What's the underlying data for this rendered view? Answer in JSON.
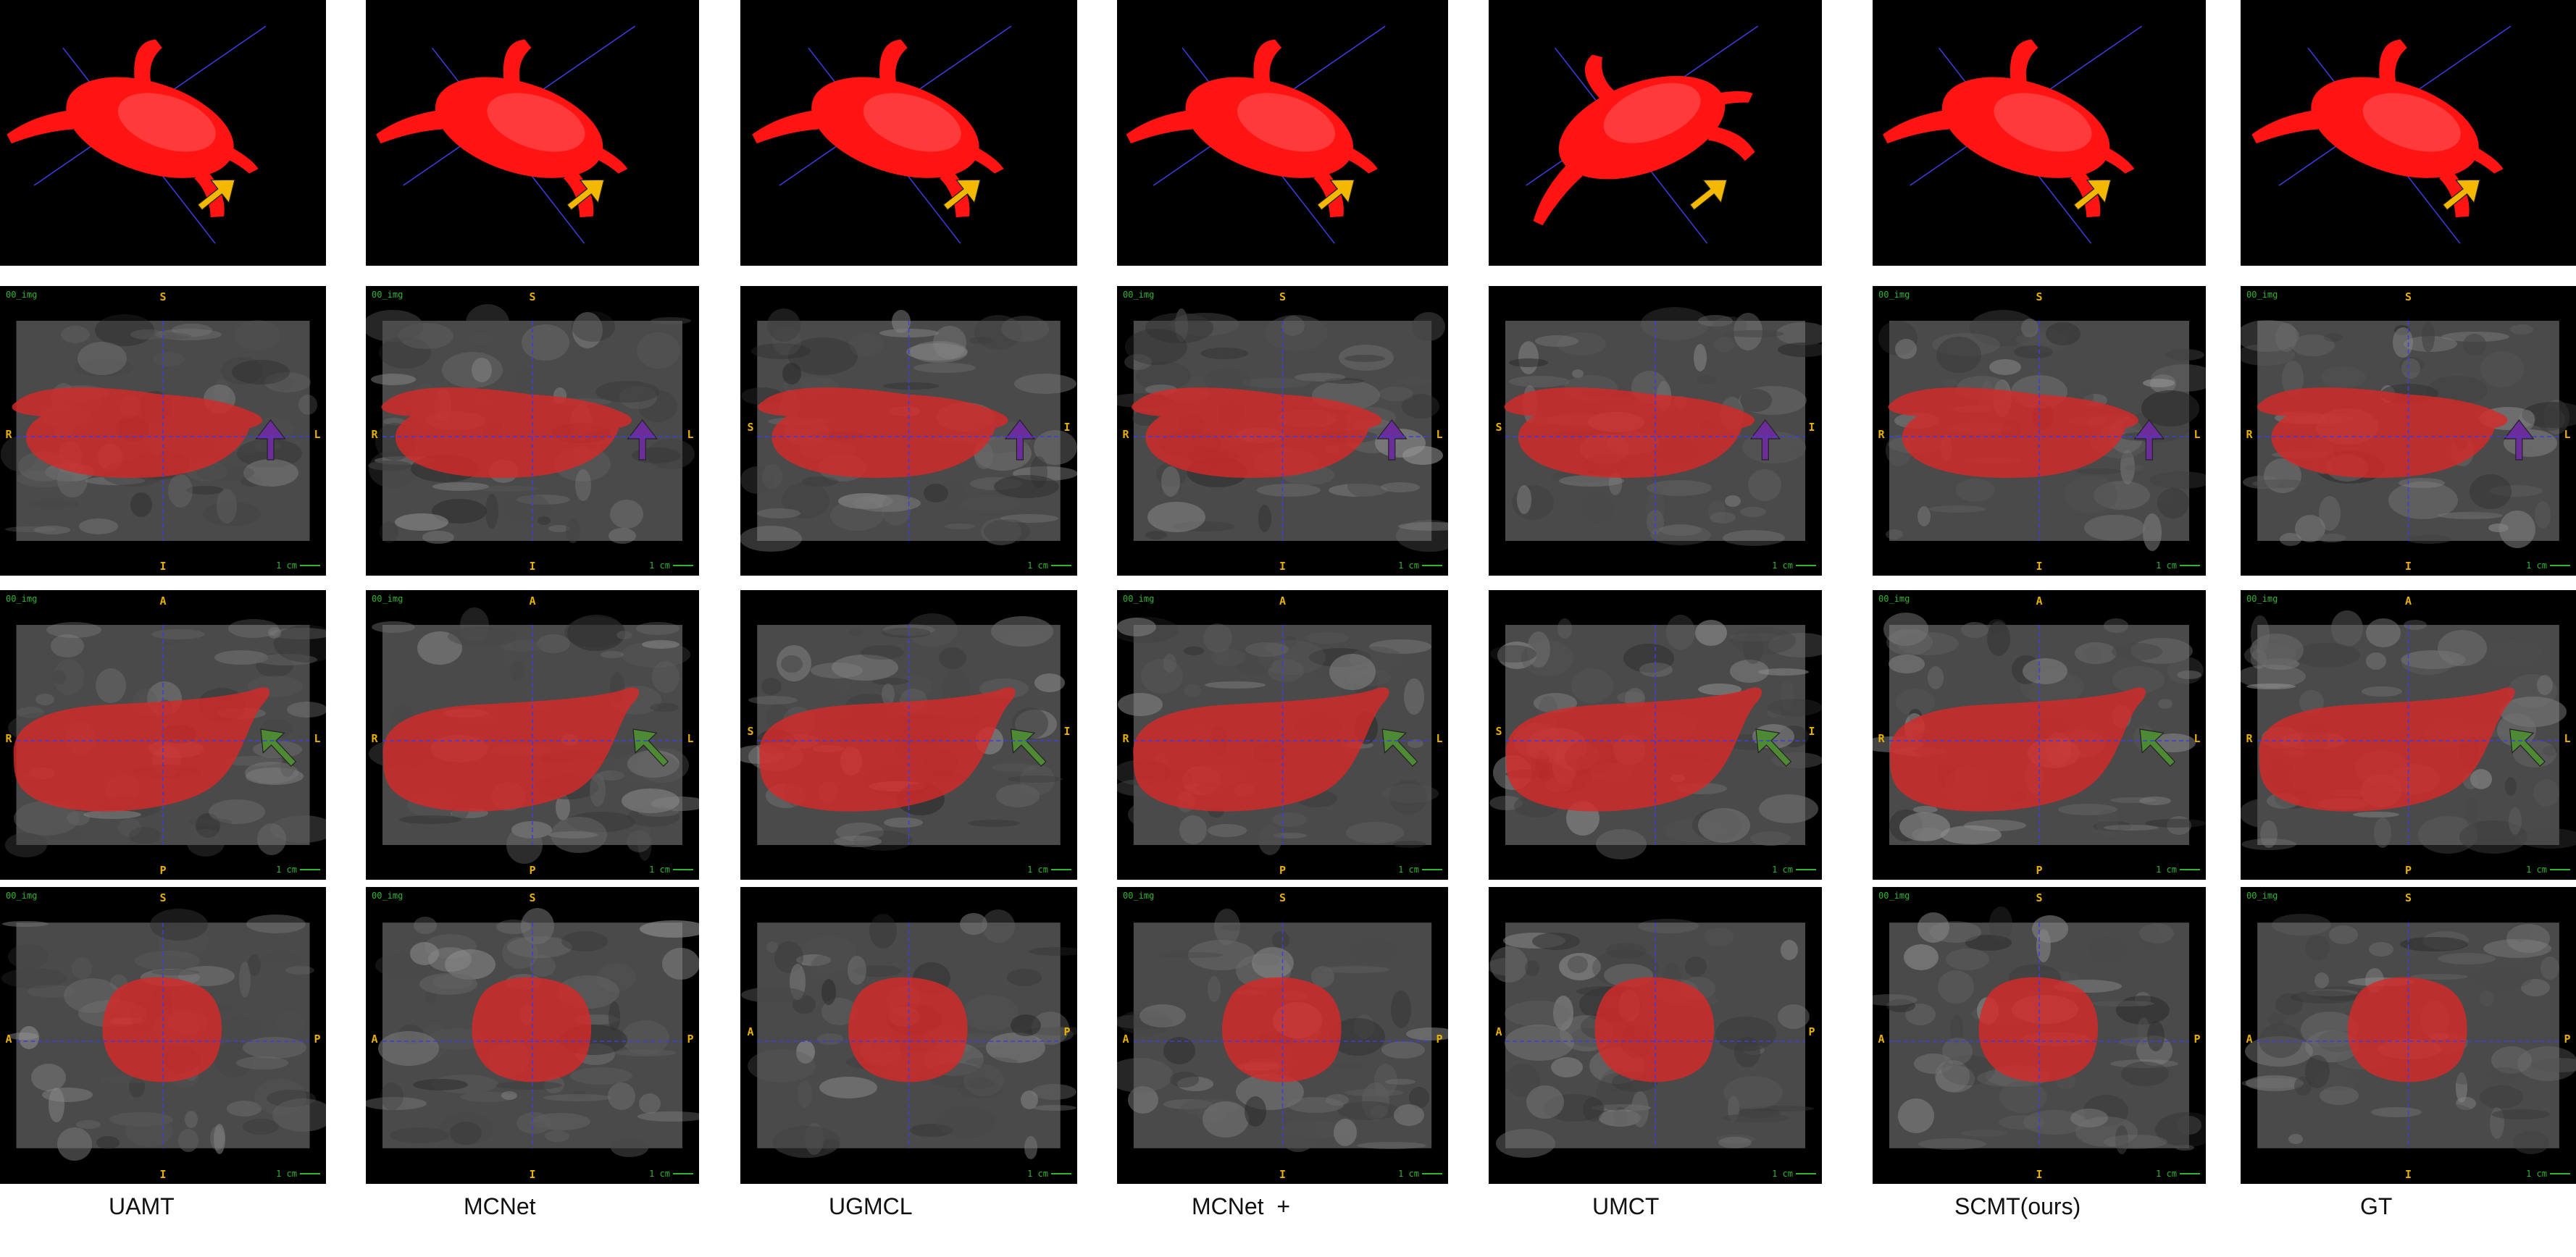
{
  "methods": [
    "UAMT",
    "MCNet",
    "UGMCL",
    "MCNet  +",
    "UMCT",
    "SCMT(ours)",
    "GT"
  ],
  "colors": {
    "segmentation": "#d42a2a",
    "render3d": "#ff1414",
    "arrow_3d": "#f5b800",
    "arrow_axial": "#6a2d9a",
    "arrow_coronal": "#4e8a34",
    "crosshair": "#3d3de0",
    "orientation_letters": "#e8b000",
    "overlay_text": "#2fb52f"
  },
  "views": [
    {
      "row": "3d",
      "markers": []
    },
    {
      "row": "axial",
      "markers": [
        "S",
        "R",
        "L",
        "I"
      ],
      "alt_markers": [
        "S",
        "I"
      ],
      "tag": "00_img",
      "scale": "1 cm"
    },
    {
      "row": "coronal",
      "markers": [
        "A",
        "R",
        "L",
        "P"
      ],
      "alt_markers": [
        "S",
        "I"
      ],
      "tag": "00_img",
      "scale": "1 cm"
    },
    {
      "row": "sagittal",
      "markers": [
        "S",
        "A",
        "P",
        "I"
      ],
      "alt_markers": [
        "A",
        "P"
      ],
      "tag": "00_img",
      "scale": "1 cm"
    }
  ]
}
